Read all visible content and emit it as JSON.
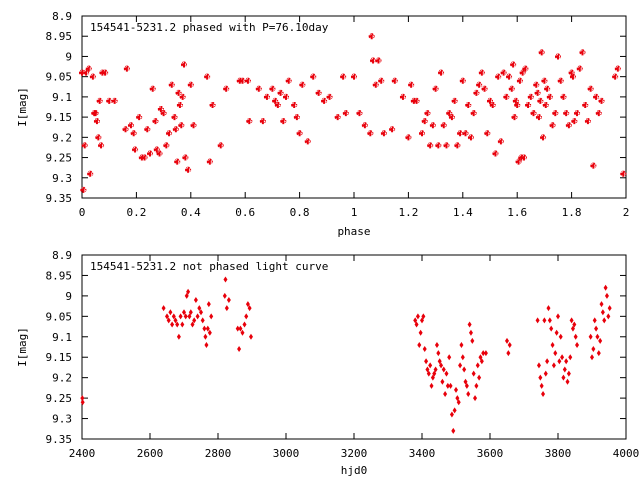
{
  "chart_data": [
    {
      "type": "scatter",
      "title": "154541-5231.2 phased with P=76.10day",
      "xlabel": "phase",
      "ylabel": "I[mag]",
      "xlim": [
        0,
        2
      ],
      "ylim": [
        9.35,
        8.9
      ],
      "y_inverted": true,
      "grid": false,
      "marker_color": "#e8000b",
      "x_ticks": [
        0,
        0.2,
        0.4,
        0.6,
        0.8,
        1,
        1.2,
        1.4,
        1.6,
        1.8,
        2
      ],
      "x_tick_labels": [
        "0",
        "0.2",
        "0.4",
        "0.6",
        "0.8",
        "1",
        "1.2",
        "1.4",
        "1.6",
        "1.8",
        "2"
      ],
      "y_ticks": [
        8.9,
        8.95,
        9,
        9.05,
        9.1,
        9.15,
        9.2,
        9.25,
        9.3,
        9.35
      ],
      "y_tick_labels": [
        "8.9",
        "8.95",
        "9",
        "9.05",
        "9.1",
        "9.15",
        "9.2",
        "9.25",
        "9.3",
        "9.35"
      ],
      "points": [
        [
          0.0,
          9.04
        ],
        [
          0.005,
          9.33
        ],
        [
          0.01,
          9.22
        ],
        [
          0.015,
          9.04
        ],
        [
          0.025,
          9.03
        ],
        [
          0.03,
          9.29
        ],
        [
          0.04,
          9.05
        ],
        [
          0.045,
          9.14
        ],
        [
          0.05,
          9.14
        ],
        [
          0.055,
          9.16
        ],
        [
          0.06,
          9.2
        ],
        [
          0.065,
          9.11
        ],
        [
          0.07,
          9.22
        ],
        [
          0.075,
          9.04
        ],
        [
          0.085,
          9.04
        ],
        [
          0.1,
          9.11
        ],
        [
          0.12,
          9.11
        ],
        [
          0.16,
          9.18
        ],
        [
          0.165,
          9.03
        ],
        [
          0.18,
          9.17
        ],
        [
          0.19,
          9.19
        ],
        [
          0.195,
          9.23
        ],
        [
          0.21,
          9.15
        ],
        [
          0.22,
          9.25
        ],
        [
          0.23,
          9.25
        ],
        [
          0.24,
          9.18
        ],
        [
          0.25,
          9.24
        ],
        [
          0.26,
          9.08
        ],
        [
          0.27,
          9.16
        ],
        [
          0.275,
          9.23
        ],
        [
          0.285,
          9.24
        ],
        [
          0.29,
          9.13
        ],
        [
          0.3,
          9.14
        ],
        [
          0.31,
          9.22
        ],
        [
          0.32,
          9.19
        ],
        [
          0.33,
          9.07
        ],
        [
          0.34,
          9.15
        ],
        [
          0.345,
          9.18
        ],
        [
          0.35,
          9.26
        ],
        [
          0.355,
          9.09
        ],
        [
          0.36,
          9.12
        ],
        [
          0.365,
          9.17
        ],
        [
          0.37,
          9.1
        ],
        [
          0.375,
          9.02
        ],
        [
          0.38,
          9.25
        ],
        [
          0.39,
          9.28
        ],
        [
          0.4,
          9.07
        ],
        [
          0.41,
          9.17
        ],
        [
          0.46,
          9.05
        ],
        [
          0.47,
          9.26
        ],
        [
          0.48,
          9.12
        ],
        [
          0.51,
          9.22
        ],
        [
          0.53,
          9.08
        ],
        [
          0.58,
          9.06
        ],
        [
          0.59,
          9.06
        ],
        [
          0.61,
          9.06
        ],
        [
          0.615,
          9.16
        ],
        [
          0.65,
          9.08
        ],
        [
          0.665,
          9.16
        ],
        [
          0.68,
          9.1
        ],
        [
          0.7,
          9.08
        ],
        [
          0.71,
          9.11
        ],
        [
          0.72,
          9.12
        ],
        [
          0.73,
          9.09
        ],
        [
          0.74,
          9.16
        ],
        [
          0.75,
          9.1
        ],
        [
          0.76,
          9.06
        ],
        [
          0.78,
          9.12
        ],
        [
          0.79,
          9.15
        ],
        [
          0.8,
          9.19
        ],
        [
          0.81,
          9.07
        ],
        [
          0.83,
          9.21
        ],
        [
          0.85,
          9.05
        ],
        [
          0.87,
          9.09
        ],
        [
          0.89,
          9.11
        ],
        [
          0.91,
          9.1
        ],
        [
          0.94,
          9.15
        ],
        [
          0.96,
          9.05
        ],
        [
          0.97,
          9.14
        ],
        [
          1.0,
          9.05
        ],
        [
          1.02,
          9.14
        ],
        [
          1.04,
          9.17
        ],
        [
          1.06,
          9.19
        ],
        [
          1.065,
          8.95
        ],
        [
          1.07,
          9.01
        ],
        [
          1.08,
          9.07
        ],
        [
          1.09,
          9.01
        ],
        [
          1.1,
          9.06
        ],
        [
          1.11,
          9.19
        ],
        [
          1.14,
          9.18
        ],
        [
          1.15,
          9.06
        ],
        [
          1.18,
          9.1
        ],
        [
          1.2,
          9.2
        ],
        [
          1.21,
          9.07
        ],
        [
          1.22,
          9.11
        ],
        [
          1.23,
          9.11
        ],
        [
          1.25,
          9.19
        ],
        [
          1.26,
          9.16
        ],
        [
          1.27,
          9.14
        ],
        [
          1.28,
          9.22
        ],
        [
          1.29,
          9.17
        ],
        [
          1.3,
          9.08
        ],
        [
          1.31,
          9.22
        ],
        [
          1.32,
          9.04
        ],
        [
          1.33,
          9.17
        ],
        [
          1.34,
          9.22
        ],
        [
          1.35,
          9.14
        ],
        [
          1.36,
          9.15
        ],
        [
          1.37,
          9.11
        ],
        [
          1.38,
          9.22
        ],
        [
          1.39,
          9.19
        ],
        [
          1.4,
          9.06
        ],
        [
          1.41,
          9.19
        ],
        [
          1.42,
          9.12
        ],
        [
          1.43,
          9.2
        ],
        [
          1.44,
          9.14
        ],
        [
          1.45,
          9.09
        ],
        [
          1.46,
          9.07
        ],
        [
          1.47,
          9.04
        ],
        [
          1.48,
          9.08
        ],
        [
          1.49,
          9.19
        ],
        [
          1.5,
          9.11
        ],
        [
          1.51,
          9.12
        ],
        [
          1.52,
          9.24
        ],
        [
          1.53,
          9.05
        ],
        [
          1.54,
          9.21
        ],
        [
          1.55,
          9.04
        ],
        [
          1.56,
          9.1
        ],
        [
          1.57,
          9.05
        ],
        [
          1.58,
          9.08
        ],
        [
          1.585,
          9.02
        ],
        [
          1.59,
          9.15
        ],
        [
          1.595,
          9.11
        ],
        [
          1.6,
          9.12
        ],
        [
          1.605,
          9.26
        ],
        [
          1.61,
          9.06
        ],
        [
          1.615,
          9.25
        ],
        [
          1.62,
          9.04
        ],
        [
          1.625,
          9.25
        ],
        [
          1.63,
          9.03
        ],
        [
          1.64,
          9.12
        ],
        [
          1.65,
          9.1
        ],
        [
          1.66,
          9.14
        ],
        [
          1.67,
          9.07
        ],
        [
          1.675,
          9.09
        ],
        [
          1.68,
          9.15
        ],
        [
          1.685,
          9.11
        ],
        [
          1.69,
          8.99
        ],
        [
          1.695,
          9.2
        ],
        [
          1.7,
          9.06
        ],
        [
          1.705,
          9.12
        ],
        [
          1.71,
          9.08
        ],
        [
          1.72,
          9.1
        ],
        [
          1.73,
          9.17
        ],
        [
          1.74,
          9.14
        ],
        [
          1.75,
          9.0
        ],
        [
          1.76,
          9.06
        ],
        [
          1.77,
          9.1
        ],
        [
          1.78,
          9.14
        ],
        [
          1.79,
          9.17
        ],
        [
          1.8,
          9.04
        ],
        [
          1.805,
          9.05
        ],
        [
          1.81,
          9.16
        ],
        [
          1.82,
          9.14
        ],
        [
          1.83,
          9.03
        ],
        [
          1.84,
          8.99
        ],
        [
          1.85,
          9.12
        ],
        [
          1.86,
          9.16
        ],
        [
          1.87,
          9.08
        ],
        [
          1.88,
          9.27
        ],
        [
          1.89,
          9.1
        ],
        [
          1.9,
          9.14
        ],
        [
          1.91,
          9.11
        ],
        [
          1.96,
          9.05
        ],
        [
          1.97,
          9.03
        ],
        [
          1.99,
          9.29
        ]
      ]
    },
    {
      "type": "scatter",
      "title": "154541-5231.2 not phased light curve",
      "xlabel": "hjd0",
      "ylabel": "I[mag]",
      "xlim": [
        2400,
        4000
      ],
      "ylim": [
        9.35,
        8.9
      ],
      "y_inverted": true,
      "grid": false,
      "marker_color": "#e8000b",
      "x_ticks": [
        2400,
        2600,
        2800,
        3000,
        3200,
        3400,
        3600,
        3800,
        4000
      ],
      "x_tick_labels": [
        "2400",
        "2600",
        "2800",
        "3000",
        "3200",
        "3400",
        "3600",
        "3800",
        "4000"
      ],
      "y_ticks": [
        8.9,
        8.95,
        9,
        9.05,
        9.1,
        9.15,
        9.2,
        9.25,
        9.3,
        9.35
      ],
      "y_tick_labels": [
        "8.9",
        "8.95",
        "9",
        "9.05",
        "9.1",
        "9.15",
        "9.2",
        "9.25",
        "9.3",
        "9.35"
      ],
      "points": [
        [
          2401,
          9.25
        ],
        [
          2402,
          9.26
        ],
        [
          2640,
          9.03
        ],
        [
          2650,
          9.05
        ],
        [
          2655,
          9.06
        ],
        [
          2660,
          9.04
        ],
        [
          2665,
          9.07
        ],
        [
          2670,
          9.05
        ],
        [
          2675,
          9.06
        ],
        [
          2680,
          9.07
        ],
        [
          2685,
          9.1
        ],
        [
          2690,
          9.05
        ],
        [
          2695,
          9.07
        ],
        [
          2700,
          9.04
        ],
        [
          2705,
          9.05
        ],
        [
          2708,
          9.0
        ],
        [
          2712,
          8.99
        ],
        [
          2716,
          9.05
        ],
        [
          2720,
          9.04
        ],
        [
          2725,
          9.07
        ],
        [
          2730,
          9.06
        ],
        [
          2735,
          9.01
        ],
        [
          2740,
          9.05
        ],
        [
          2745,
          9.03
        ],
        [
          2750,
          9.04
        ],
        [
          2755,
          9.06
        ],
        [
          2760,
          9.08
        ],
        [
          2763,
          9.1
        ],
        [
          2766,
          9.12
        ],
        [
          2770,
          9.08
        ],
        [
          2773,
          9.02
        ],
        [
          2776,
          9.09
        ],
        [
          2780,
          9.05
        ],
        [
          2820,
          9.0
        ],
        [
          2822,
          8.96
        ],
        [
          2826,
          9.03
        ],
        [
          2832,
          9.01
        ],
        [
          2858,
          9.08
        ],
        [
          2862,
          9.13
        ],
        [
          2866,
          9.08
        ],
        [
          2872,
          9.09
        ],
        [
          2878,
          9.07
        ],
        [
          2883,
          9.05
        ],
        [
          2888,
          9.02
        ],
        [
          2893,
          9.03
        ],
        [
          2897,
          9.1
        ],
        [
          3380,
          9.06
        ],
        [
          3384,
          9.07
        ],
        [
          3388,
          9.05
        ],
        [
          3392,
          9.12
        ],
        [
          3396,
          9.09
        ],
        [
          3400,
          9.06
        ],
        [
          3404,
          9.05
        ],
        [
          3408,
          9.13
        ],
        [
          3412,
          9.16
        ],
        [
          3416,
          9.18
        ],
        [
          3420,
          9.19
        ],
        [
          3424,
          9.17
        ],
        [
          3428,
          9.22
        ],
        [
          3432,
          9.2
        ],
        [
          3436,
          9.19
        ],
        [
          3440,
          9.18
        ],
        [
          3444,
          9.12
        ],
        [
          3448,
          9.14
        ],
        [
          3452,
          9.16
        ],
        [
          3456,
          9.17
        ],
        [
          3460,
          9.21
        ],
        [
          3464,
          9.18
        ],
        [
          3468,
          9.24
        ],
        [
          3472,
          9.19
        ],
        [
          3476,
          9.22
        ],
        [
          3480,
          9.15
        ],
        [
          3484,
          9.22
        ],
        [
          3488,
          9.29
        ],
        [
          3492,
          9.33
        ],
        [
          3496,
          9.28
        ],
        [
          3500,
          9.23
        ],
        [
          3504,
          9.25
        ],
        [
          3508,
          9.26
        ],
        [
          3512,
          9.17
        ],
        [
          3516,
          9.12
        ],
        [
          3520,
          9.15
        ],
        [
          3524,
          9.18
        ],
        [
          3528,
          9.21
        ],
        [
          3532,
          9.22
        ],
        [
          3536,
          9.24
        ],
        [
          3540,
          9.07
        ],
        [
          3544,
          9.09
        ],
        [
          3548,
          9.11
        ],
        [
          3552,
          9.19
        ],
        [
          3556,
          9.25
        ],
        [
          3560,
          9.22
        ],
        [
          3564,
          9.17
        ],
        [
          3568,
          9.2
        ],
        [
          3572,
          9.15
        ],
        [
          3576,
          9.16
        ],
        [
          3580,
          9.14
        ],
        [
          3588,
          9.14
        ],
        [
          3650,
          9.11
        ],
        [
          3654,
          9.14
        ],
        [
          3658,
          9.12
        ],
        [
          3740,
          9.06
        ],
        [
          3744,
          9.17
        ],
        [
          3748,
          9.2
        ],
        [
          3752,
          9.22
        ],
        [
          3756,
          9.24
        ],
        [
          3760,
          9.06
        ],
        [
          3764,
          9.19
        ],
        [
          3768,
          9.16
        ],
        [
          3772,
          9.03
        ],
        [
          3776,
          9.06
        ],
        [
          3780,
          9.08
        ],
        [
          3784,
          9.12
        ],
        [
          3788,
          9.17
        ],
        [
          3792,
          9.14
        ],
        [
          3796,
          9.09
        ],
        [
          3800,
          9.05
        ],
        [
          3804,
          9.16
        ],
        [
          3808,
          9.1
        ],
        [
          3812,
          9.15
        ],
        [
          3816,
          9.2
        ],
        [
          3820,
          9.18
        ],
        [
          3824,
          9.16
        ],
        [
          3828,
          9.21
        ],
        [
          3832,
          9.19
        ],
        [
          3836,
          9.15
        ],
        [
          3840,
          9.06
        ],
        [
          3844,
          9.08
        ],
        [
          3848,
          9.07
        ],
        [
          3852,
          9.1
        ],
        [
          3856,
          9.12
        ],
        [
          3896,
          9.1
        ],
        [
          3900,
          9.15
        ],
        [
          3904,
          9.13
        ],
        [
          3908,
          9.06
        ],
        [
          3912,
          9.08
        ],
        [
          3916,
          9.1
        ],
        [
          3920,
          9.14
        ],
        [
          3924,
          9.11
        ],
        [
          3928,
          9.02
        ],
        [
          3932,
          9.04
        ],
        [
          3936,
          9.06
        ],
        [
          3940,
          8.98
        ],
        [
          3944,
          9.0
        ],
        [
          3948,
          9.05
        ],
        [
          3952,
          9.03
        ]
      ]
    }
  ]
}
